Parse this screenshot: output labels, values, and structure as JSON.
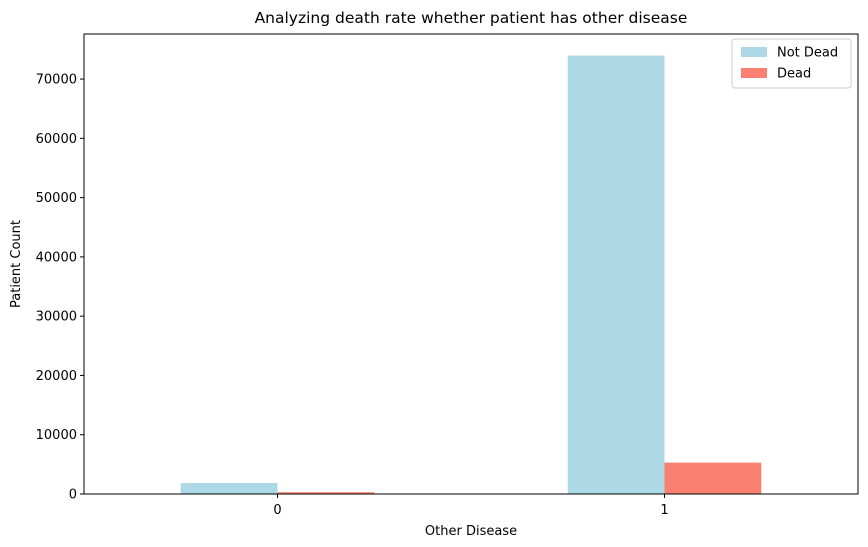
{
  "chart_data": {
    "type": "bar",
    "title": "Analyzing death rate whether patient has other disease",
    "xlabel": "Other Disease",
    "ylabel": "Patient Count",
    "categories": [
      "0",
      "1"
    ],
    "series": [
      {
        "name": "Not Dead",
        "color": "#add8e6",
        "values": [
          1850,
          73950
        ]
      },
      {
        "name": "Dead",
        "color": "#fa8072",
        "values": [
          300,
          5300
        ]
      }
    ],
    "ylim": [
      0,
      77600
    ],
    "yticks": [
      0,
      10000,
      20000,
      30000,
      40000,
      50000,
      60000,
      70000
    ],
    "grid": false,
    "legend_position": "top-right"
  }
}
